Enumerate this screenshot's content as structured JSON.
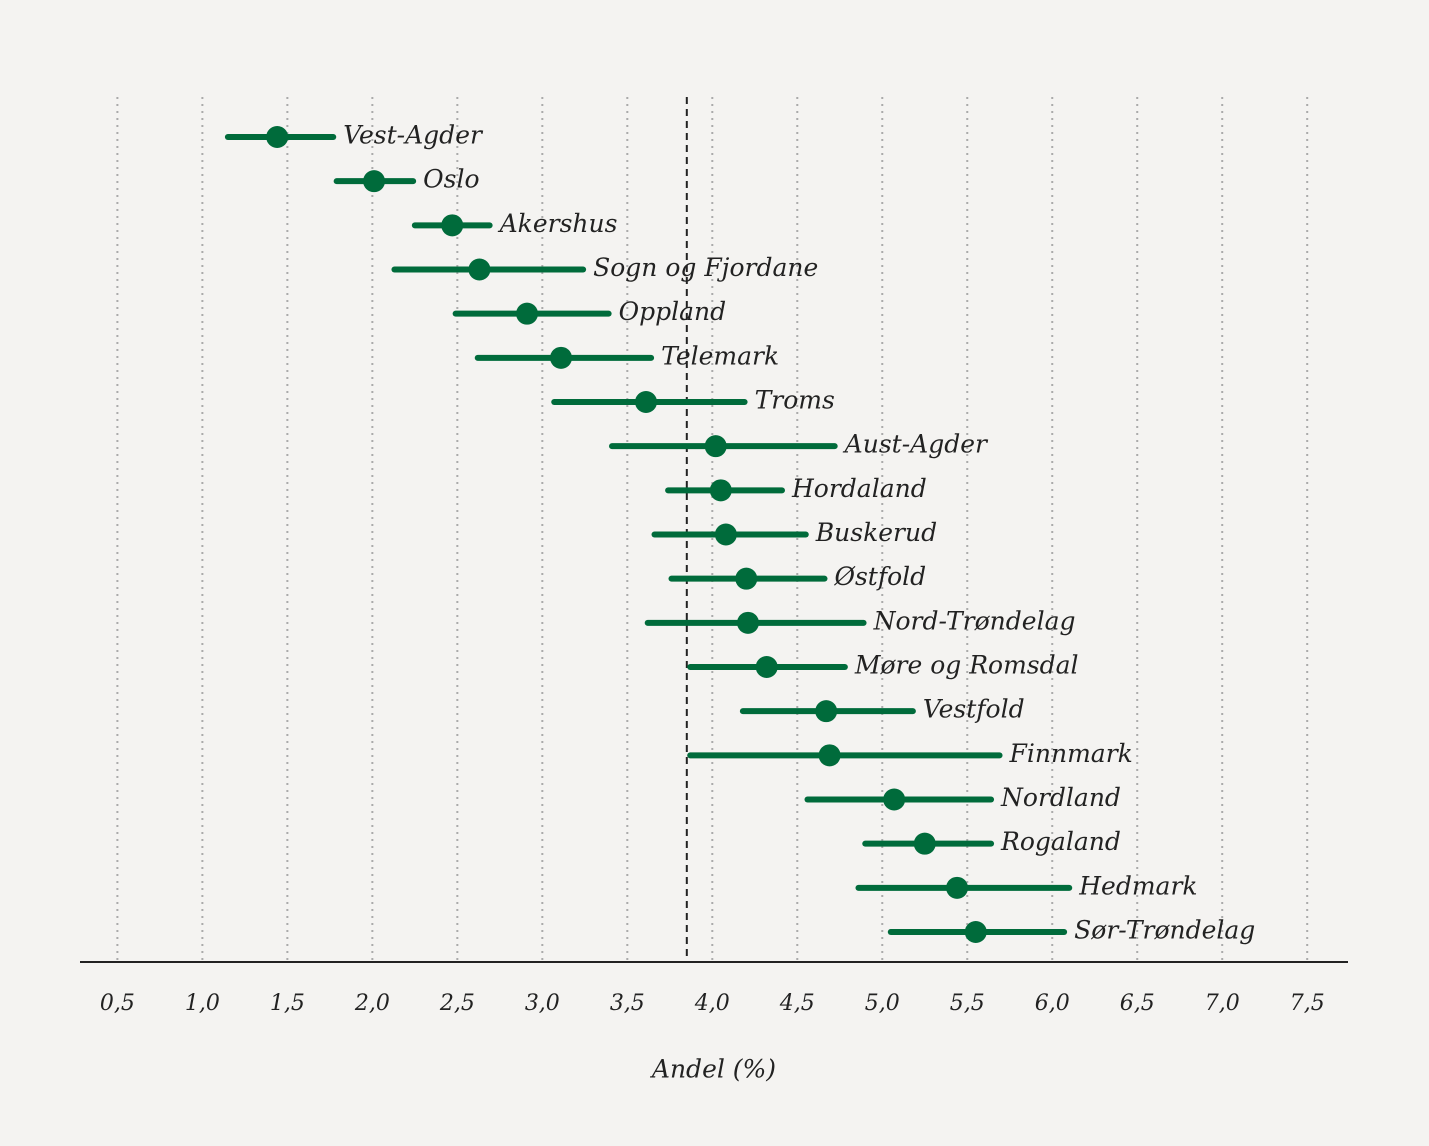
{
  "chart_data": {
    "type": "dot-interval",
    "x_label": "Andel (%)",
    "categories": [
      "Vest-Agder",
      "Oslo",
      "Akershus",
      "Sogn og Fjordane",
      "Oppland",
      "Telemark",
      "Troms",
      "Aust-Agder",
      "Hordaland",
      "Buskerud",
      "Østfold",
      "Nord-Trøndelag",
      "Møre og Romsdal",
      "Vestfold",
      "Finnmark",
      "Nordland",
      "Rogaland",
      "Hedmark",
      "Sør-Trøndelag"
    ],
    "values": [
      1.44,
      2.01,
      2.47,
      2.63,
      2.91,
      3.11,
      3.61,
      4.02,
      4.05,
      4.08,
      4.2,
      4.21,
      4.32,
      4.67,
      4.69,
      5.07,
      5.25,
      5.44,
      5.55
    ],
    "low": [
      1.15,
      1.79,
      2.25,
      2.13,
      2.49,
      2.62,
      3.07,
      3.41,
      3.74,
      3.66,
      3.76,
      3.62,
      3.87,
      4.18,
      3.87,
      4.56,
      4.9,
      4.86,
      5.05
    ],
    "high": [
      1.77,
      2.24,
      2.69,
      3.24,
      3.39,
      3.64,
      4.19,
      4.72,
      4.41,
      4.55,
      4.66,
      4.89,
      4.78,
      5.18,
      5.69,
      5.64,
      5.64,
      6.1,
      6.07
    ],
    "reference_line": 3.85,
    "color": "#006b3b",
    "xlim": [
      0.28,
      7.74
    ],
    "xticks": [
      {
        "value": 0.5,
        "label": "0,5"
      },
      {
        "value": 1,
        "label": "1,0"
      },
      {
        "value": 1.5,
        "label": "1,5"
      },
      {
        "value": 2,
        "label": "2,0"
      },
      {
        "value": 2.5,
        "label": "2,5"
      },
      {
        "value": 3,
        "label": "3,0"
      },
      {
        "value": 3.5,
        "label": "3,5"
      },
      {
        "value": 4,
        "label": "4,0"
      },
      {
        "value": 4.5,
        "label": "4,5"
      },
      {
        "value": 5,
        "label": "5,0"
      },
      {
        "value": 5.5,
        "label": "5,5"
      },
      {
        "value": 6,
        "label": "6,0"
      },
      {
        "value": 6.5,
        "label": "6,5"
      },
      {
        "value": 7,
        "label": "7,0"
      },
      {
        "value": 7.5,
        "label": "7,5"
      }
    ],
    "grid": true
  }
}
